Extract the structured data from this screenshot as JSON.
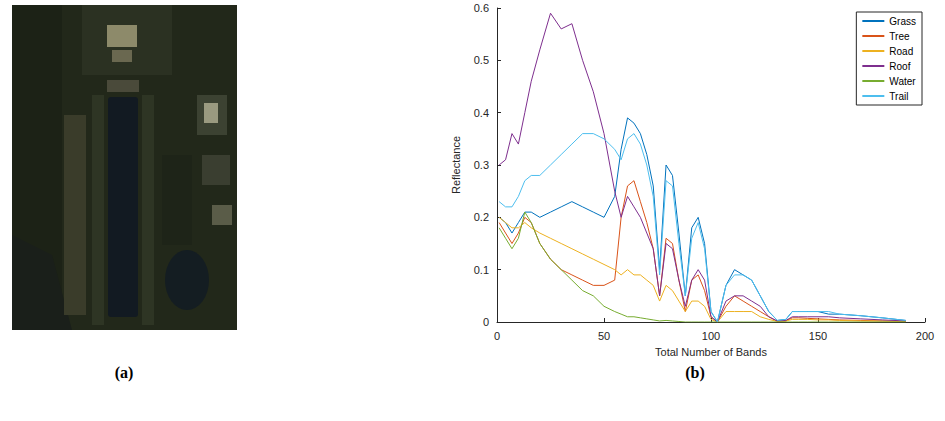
{
  "panel_labels": [
    "(a)",
    "(b)"
  ],
  "chart_data": {
    "type": "line",
    "xlabel": "Total Number of Bands",
    "ylabel": "Reflectance",
    "xlim": [
      0,
      200
    ],
    "xticks": [
      0,
      50,
      100,
      150,
      200
    ],
    "ylim": [
      0,
      0.6
    ],
    "yticks": [
      0,
      0.1,
      0.2,
      0.3,
      0.4,
      0.5,
      0.6
    ],
    "grid": false,
    "legend": "upper right",
    "x": [
      1,
      4,
      7,
      10,
      13,
      16,
      20,
      25,
      30,
      35,
      40,
      45,
      50,
      55,
      58,
      61,
      64,
      67,
      70,
      73,
      76,
      79,
      82,
      85,
      88,
      91,
      94,
      97,
      100,
      103,
      107,
      111,
      115,
      119,
      123,
      127,
      131,
      135,
      138,
      141,
      145,
      150,
      155,
      160,
      170,
      180,
      191
    ],
    "series": [
      {
        "name": "Grass",
        "color": "#0072bd",
        "values": [
          0.2,
          0.19,
          0.17,
          0.19,
          0.21,
          0.21,
          0.2,
          0.21,
          0.22,
          0.23,
          0.22,
          0.21,
          0.2,
          0.24,
          0.33,
          0.39,
          0.38,
          0.36,
          0.32,
          0.26,
          0.1,
          0.3,
          0.28,
          0.17,
          0.05,
          0.18,
          0.2,
          0.15,
          0.02,
          0.0,
          0.07,
          0.1,
          0.09,
          0.08,
          0.05,
          0.02,
          0.003,
          0.005,
          0.02,
          0.02,
          0.02,
          0.02,
          0.015,
          0.015,
          0.012,
          0.008,
          0.003
        ]
      },
      {
        "name": "Tree",
        "color": "#d95319",
        "values": [
          0.19,
          0.17,
          0.15,
          0.17,
          0.2,
          0.19,
          0.15,
          0.12,
          0.1,
          0.09,
          0.08,
          0.07,
          0.07,
          0.08,
          0.2,
          0.26,
          0.27,
          0.23,
          0.19,
          0.14,
          0.05,
          0.16,
          0.15,
          0.08,
          0.02,
          0.08,
          0.09,
          0.06,
          0.01,
          0.0,
          0.03,
          0.05,
          0.04,
          0.03,
          0.02,
          0.01,
          0.001,
          0.002,
          0.008,
          0.008,
          0.007,
          0.006,
          0.005,
          0.004,
          0.003,
          0.002,
          0.001
        ]
      },
      {
        "name": "Road",
        "color": "#edb120",
        "values": [
          0.2,
          0.19,
          0.18,
          0.18,
          0.19,
          0.18,
          0.17,
          0.16,
          0.15,
          0.14,
          0.13,
          0.12,
          0.11,
          0.1,
          0.09,
          0.1,
          0.09,
          0.09,
          0.08,
          0.07,
          0.04,
          0.07,
          0.06,
          0.04,
          0.02,
          0.04,
          0.04,
          0.03,
          0.005,
          0.0,
          0.02,
          0.02,
          0.02,
          0.02,
          0.01,
          0.005,
          0.001,
          0.002,
          0.005,
          0.005,
          0.005,
          0.004,
          0.004,
          0.003,
          0.002,
          0.002,
          0.001
        ]
      },
      {
        "name": "Roof",
        "color": "#7e2f8e",
        "values": [
          0.3,
          0.31,
          0.36,
          0.34,
          0.4,
          0.46,
          0.52,
          0.59,
          0.56,
          0.57,
          0.5,
          0.44,
          0.36,
          0.25,
          0.2,
          0.24,
          0.22,
          0.2,
          0.17,
          0.14,
          0.05,
          0.15,
          0.14,
          0.08,
          0.03,
          0.08,
          0.1,
          0.08,
          0.01,
          0.0,
          0.04,
          0.05,
          0.05,
          0.04,
          0.03,
          0.01,
          0.002,
          0.003,
          0.01,
          0.01,
          0.01,
          0.01,
          0.01,
          0.008,
          0.006,
          0.004,
          0.002
        ]
      },
      {
        "name": "Water",
        "color": "#77ac30",
        "values": [
          0.18,
          0.16,
          0.14,
          0.16,
          0.21,
          0.19,
          0.15,
          0.12,
          0.1,
          0.08,
          0.06,
          0.05,
          0.03,
          0.02,
          0.015,
          0.01,
          0.01,
          0.008,
          0.006,
          0.004,
          0.002,
          0.003,
          0.002,
          0.001,
          0.0,
          0.0,
          0.0,
          0.0,
          0.0,
          0.0,
          0.0,
          0.0,
          0.0,
          0.0,
          0.0,
          0.0,
          0.0,
          0.0,
          0.0,
          0.0,
          0.0,
          0.0,
          0.0,
          0.0,
          0.0,
          0.0,
          0.0
        ]
      },
      {
        "name": "Trail",
        "color": "#4dbeee",
        "values": [
          0.23,
          0.22,
          0.22,
          0.24,
          0.27,
          0.28,
          0.28,
          0.3,
          0.32,
          0.34,
          0.36,
          0.36,
          0.35,
          0.33,
          0.31,
          0.35,
          0.36,
          0.34,
          0.3,
          0.24,
          0.09,
          0.27,
          0.26,
          0.15,
          0.05,
          0.16,
          0.19,
          0.14,
          0.02,
          0.0,
          0.07,
          0.09,
          0.09,
          0.08,
          0.05,
          0.02,
          0.003,
          0.005,
          0.02,
          0.02,
          0.02,
          0.02,
          0.02,
          0.015,
          0.012,
          0.008,
          0.003
        ]
      }
    ]
  }
}
